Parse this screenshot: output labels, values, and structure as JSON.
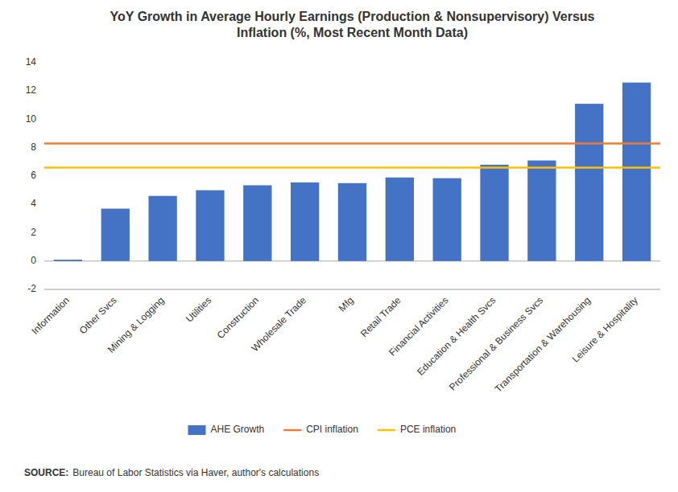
{
  "chart_data": {
    "type": "bar",
    "title": "YoY Growth in Average Hourly Earnings (Production & Nonsupervisory) Versus\nInflation (%, Most Recent Month Data)",
    "categories": [
      "Information",
      "Other Svcs",
      "Mining & Logging",
      "Utilities",
      "Construction",
      "Wholesale Trade",
      "Mfg",
      "Retail Trade",
      "Financial Activities",
      "Education & Health Svcs",
      "Professional & Business Svcs",
      "Transportation & Warehousing",
      "Leisure & Hospitality"
    ],
    "series": [
      {
        "name": "AHE Growth",
        "type": "bar",
        "color": "#4472C4",
        "values": [
          0.1,
          3.7,
          4.6,
          5.0,
          5.35,
          5.55,
          5.5,
          5.9,
          5.85,
          6.8,
          7.1,
          11.1,
          12.6
        ]
      },
      {
        "name": "CPI inflation",
        "type": "hline",
        "color": "#ED7D31",
        "value": 8.3
      },
      {
        "name": "PCE inflation",
        "type": "hline",
        "color": "#FFC000",
        "value": 6.6
      }
    ],
    "ylim": [
      -2,
      14
    ],
    "yticks": [
      -2,
      0,
      2,
      4,
      6,
      8,
      10,
      12,
      14
    ],
    "grid": false,
    "legend": "bottom",
    "source_label": "SOURCE:",
    "source_text": "Bureau of Labor Statistics via Haver, author's calculations"
  }
}
